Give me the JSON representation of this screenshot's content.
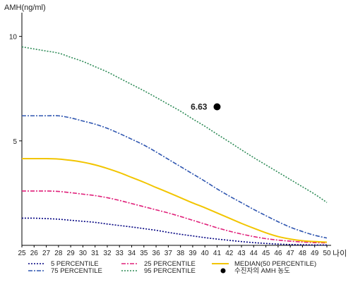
{
  "chart_data": {
    "type": "line",
    "ylabel": "AMH(ng/ml)",
    "xlabel": "나이",
    "xlim": [
      25,
      50
    ],
    "ylim": [
      0,
      11
    ],
    "yticks": [
      5,
      10
    ],
    "x": [
      25,
      26,
      27,
      28,
      29,
      30,
      31,
      32,
      33,
      34,
      35,
      36,
      37,
      38,
      39,
      40,
      41,
      42,
      43,
      44,
      45,
      46,
      47,
      48,
      49,
      50
    ],
    "x_tick_labels": [
      "25",
      "26",
      "27",
      "28",
      "29",
      "30",
      "31",
      "32",
      "33",
      "34",
      "35",
      "36",
      "37",
      "38",
      "39",
      "40",
      "41",
      "42",
      "43",
      "44",
      "45",
      "46",
      "47",
      "48",
      "49",
      "50"
    ],
    "series": [
      {
        "name": "5 PERCENTILE",
        "color": "#000080",
        "dash": "2,2",
        "values": [
          1.3,
          1.3,
          1.28,
          1.25,
          1.2,
          1.15,
          1.1,
          1.02,
          0.95,
          0.88,
          0.8,
          0.72,
          0.62,
          0.53,
          0.45,
          0.37,
          0.3,
          0.24,
          0.18,
          0.13,
          0.09,
          0.06,
          0.04,
          0.03,
          0.02,
          0.02
        ]
      },
      {
        "name": "75 PERCENTILE",
        "color": "#2f56b0",
        "dash": "6,2,2,2",
        "values": [
          6.2,
          6.2,
          6.2,
          6.2,
          6.1,
          5.95,
          5.8,
          5.6,
          5.35,
          5.08,
          4.8,
          4.47,
          4.12,
          3.77,
          3.42,
          3.07,
          2.7,
          2.36,
          2.04,
          1.72,
          1.42,
          1.13,
          0.87,
          0.66,
          0.48,
          0.35
        ]
      },
      {
        "name": "25 PERCENTILE",
        "color": "#e0207a",
        "dash": "6,2,2,2",
        "values": [
          2.6,
          2.6,
          2.6,
          2.58,
          2.52,
          2.45,
          2.38,
          2.28,
          2.15,
          2.0,
          1.85,
          1.7,
          1.55,
          1.38,
          1.2,
          1.02,
          0.84,
          0.68,
          0.54,
          0.42,
          0.32,
          0.25,
          0.2,
          0.16,
          0.13,
          0.12
        ]
      },
      {
        "name": "95 PERCENTILE",
        "color": "#2e8b57",
        "dash": "2,2",
        "values": [
          9.5,
          9.4,
          9.3,
          9.2,
          9.0,
          8.8,
          8.55,
          8.3,
          8.0,
          7.7,
          7.4,
          7.08,
          6.75,
          6.42,
          6.05,
          5.7,
          5.32,
          4.95,
          4.57,
          4.2,
          3.85,
          3.5,
          3.15,
          2.8,
          2.45,
          2.05
        ]
      },
      {
        "name": "MEDIAN(50 PERCENTILE)",
        "color": "#f2c500",
        "dash": "",
        "values": [
          4.15,
          4.15,
          4.15,
          4.13,
          4.07,
          3.98,
          3.85,
          3.68,
          3.48,
          3.25,
          3.02,
          2.77,
          2.53,
          2.28,
          2.03,
          1.8,
          1.55,
          1.3,
          1.05,
          0.82,
          0.6,
          0.42,
          0.3,
          0.22,
          0.18,
          0.15
        ]
      }
    ],
    "points": [
      {
        "name": "수진자의 AMH 농도",
        "x": 41,
        "y": 6.63,
        "label": "6.63",
        "color": "#000000"
      }
    ],
    "legend_order": [
      "5 PERCENTILE",
      "25 PERCENTILE",
      "MEDIAN(50 PERCENTILE)",
      "75 PERCENTILE",
      "95 PERCENTILE",
      "수진자의 AMH 농도"
    ],
    "legend_position": "bottom",
    "grid": false
  }
}
